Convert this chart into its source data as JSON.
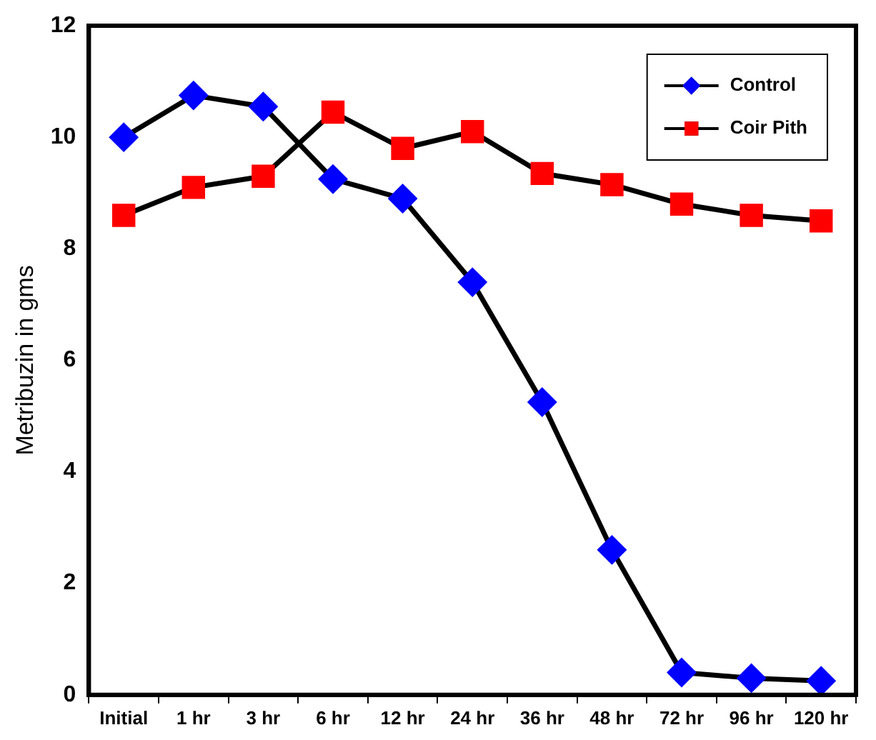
{
  "chart_data": {
    "type": "line",
    "ylabel": "Metribuzin in gms",
    "categories": [
      "Initial",
      "1 hr",
      "3 hr",
      "6 hr",
      "12 hr",
      "24 hr",
      "36 hr",
      "48 hr",
      "72 hr",
      "96 hr",
      "120 hr"
    ],
    "series": [
      {
        "name": "Control",
        "color": "#0000ff",
        "marker": "diamond",
        "values": [
          10.0,
          10.75,
          10.55,
          9.25,
          8.9,
          7.4,
          5.25,
          2.6,
          0.4,
          0.3,
          0.25
        ]
      },
      {
        "name": "Coir Pith",
        "color": "#ff0000",
        "marker": "square",
        "values": [
          8.6,
          9.1,
          9.3,
          10.45,
          9.8,
          10.1,
          9.35,
          9.15,
          8.8,
          8.6,
          8.5
        ]
      }
    ],
    "ylim": [
      0,
      12
    ],
    "yticks": [
      0,
      2,
      4,
      6,
      8,
      10,
      12
    ],
    "grid": false,
    "legend": "top right",
    "line_style": "solid"
  }
}
